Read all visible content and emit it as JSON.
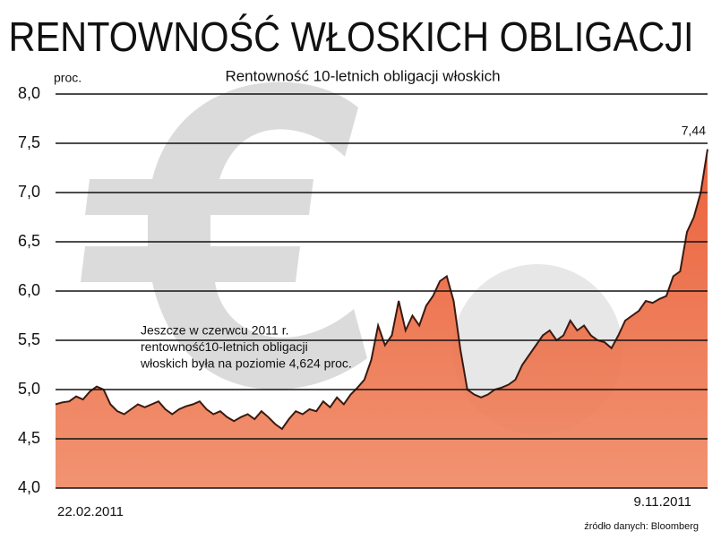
{
  "chart_data": {
    "type": "area",
    "title": "RENTOWNOŚĆ WŁOSKICH OBLIGACJI",
    "subtitle": "Rentowność 10-letnich obligacji włoskich",
    "y_unit": "proc.",
    "annotation": [
      "Jeszcze w czerwcu 2011 r.",
      "rentowność10-letnich obligacji",
      "włoskich była na poziomie 4,624 proc."
    ],
    "source": "źródło danych: Bloomberg",
    "categories": [
      "22.02.2011",
      null,
      null,
      null,
      null,
      null,
      null,
      null,
      null,
      null,
      null,
      null,
      null,
      null,
      null,
      null,
      null,
      null,
      null,
      null,
      null,
      null,
      null,
      null,
      null,
      null,
      null,
      null,
      null,
      null,
      null,
      null,
      null,
      null,
      null,
      null,
      null,
      null,
      null,
      null,
      null,
      null,
      null,
      null,
      null,
      null,
      null,
      null,
      null,
      null,
      null,
      null,
      null,
      null,
      null,
      null,
      null,
      null,
      null,
      null,
      null,
      null,
      null,
      null,
      null,
      null,
      null,
      null,
      null,
      null,
      null,
      null,
      null,
      null,
      null,
      null,
      null,
      null,
      null,
      null,
      null,
      null,
      null,
      null,
      null,
      null,
      null,
      null,
      null,
      null,
      null,
      null,
      null,
      null,
      null,
      "9.11.2011"
    ],
    "series": [
      {
        "color": "#e9552c",
        "line_color": "#3a1a10",
        "values": [
          4.85,
          4.87,
          4.88,
          4.93,
          4.9,
          4.98,
          5.03,
          5.0,
          4.85,
          4.78,
          4.75,
          4.8,
          4.85,
          4.82,
          4.85,
          4.88,
          4.8,
          4.75,
          4.8,
          4.83,
          4.85,
          4.88,
          4.8,
          4.75,
          4.78,
          4.72,
          4.68,
          4.72,
          4.75,
          4.7,
          4.78,
          4.72,
          4.65,
          4.6,
          4.7,
          4.78,
          4.75,
          4.8,
          4.78,
          4.88,
          4.82,
          4.92,
          4.85,
          4.95,
          5.02,
          5.1,
          5.3,
          5.65,
          5.45,
          5.55,
          5.9,
          5.6,
          5.75,
          5.65,
          5.85,
          5.95,
          6.1,
          6.15,
          5.9,
          5.4,
          5.0,
          4.95,
          4.92,
          4.95,
          5.0,
          5.02,
          5.05,
          5.1,
          5.25,
          5.35,
          5.45,
          5.55,
          5.6,
          5.5,
          5.55,
          5.7,
          5.6,
          5.65,
          5.55,
          5.5,
          5.48,
          5.42,
          5.55,
          5.7,
          5.75,
          5.8,
          5.9,
          5.88,
          5.92,
          5.95,
          6.15,
          6.2,
          6.6,
          6.75,
          7.0,
          7.44
        ],
        "value_labels": [
          null,
          null,
          null,
          null,
          null,
          null,
          null,
          null,
          null,
          null,
          null,
          null,
          null,
          null,
          null,
          null,
          null,
          null,
          null,
          null,
          null,
          null,
          null,
          null,
          null,
          null,
          null,
          null,
          null,
          null,
          null,
          null,
          null,
          null,
          null,
          null,
          null,
          null,
          null,
          null,
          null,
          null,
          null,
          null,
          null,
          null,
          null,
          null,
          null,
          null,
          null,
          null,
          null,
          null,
          null,
          null,
          null,
          null,
          null,
          null,
          null,
          null,
          null,
          null,
          null,
          null,
          null,
          null,
          null,
          null,
          null,
          null,
          null,
          null,
          null,
          null,
          null,
          null,
          null,
          null,
          null,
          null,
          null,
          null,
          null,
          null,
          null,
          null,
          null,
          null,
          null,
          null,
          null,
          null,
          null,
          "7,44"
        ]
      }
    ],
    "ylim": [
      4.0,
      8.0
    ],
    "yticks": [
      {
        "value": 4.0,
        "label": "4,0"
      },
      {
        "value": 4.5,
        "label": "4,5"
      },
      {
        "value": 5.0,
        "label": "5,0"
      },
      {
        "value": 5.5,
        "label": "5,5"
      },
      {
        "value": 6.0,
        "label": "6,0"
      },
      {
        "value": 6.5,
        "label": "6,5"
      },
      {
        "value": 7.0,
        "label": "7,0"
      },
      {
        "value": 7.5,
        "label": "7,5"
      },
      {
        "value": 8.0,
        "label": "8,0"
      }
    ],
    "grid": true
  }
}
